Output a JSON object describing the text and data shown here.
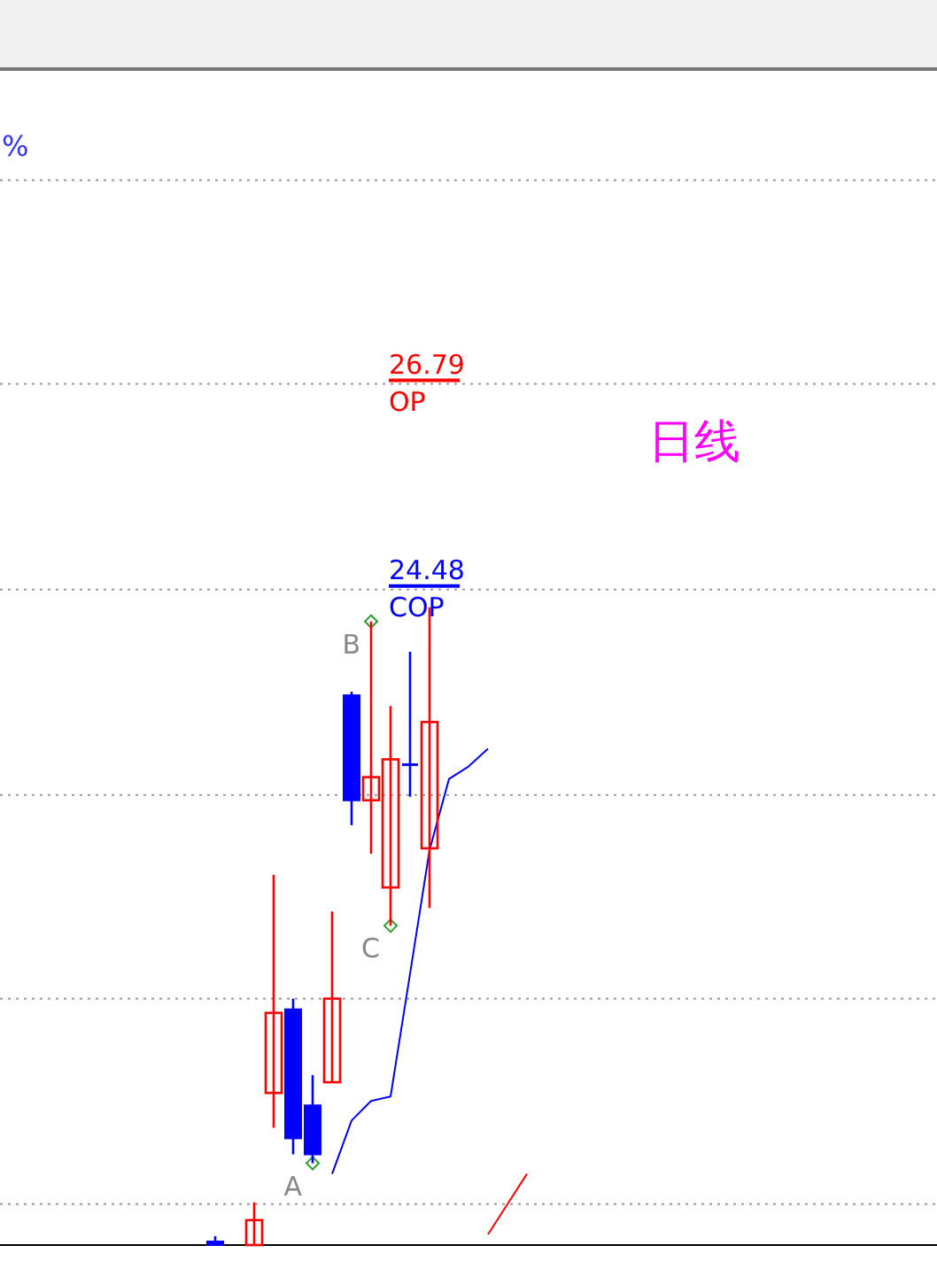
{
  "chart_data": {
    "type": "candlestick",
    "categories": [
      null,
      null,
      null,
      null,
      null,
      null,
      null,
      null,
      null,
      null,
      null,
      null,
      null,
      null,
      null,
      null,
      null,
      null,
      null,
      null,
      null,
      null,
      null,
      null,
      null,
      null,
      null,
      null,
      null,
      null,
      null,
      null,
      null,
      null,
      null,
      null,
      null,
      null,
      null,
      null,
      null,
      null,
      null,
      null,
      null,
      null,
      null
    ],
    "ohlc": [
      null,
      null,
      null,
      null,
      null,
      null,
      null,
      null,
      null,
      null,
      [
        17.15,
        17.21,
        17.11,
        17.11
      ],
      null,
      [
        17.11,
        17.59,
        17.11,
        17.39
      ],
      [
        18.82,
        21.27,
        18.43,
        19.72
      ],
      [
        19.76,
        19.88,
        18.13,
        18.31
      ],
      [
        18.68,
        19.02,
        18.03,
        18.13
      ],
      [
        18.94,
        20.86,
        18.94,
        19.88
      ],
      [
        23.29,
        23.33,
        21.83,
        22.11
      ],
      [
        22.11,
        24.12,
        21.51,
        22.37
      ],
      [
        21.13,
        23.17,
        20.7,
        22.57
      ],
      [
        22.51,
        23.78,
        22.15,
        22.51
      ],
      [
        21.57,
        24.28,
        20.9,
        22.99
      ],
      null,
      null,
      null,
      null,
      null,
      null,
      null,
      null,
      null,
      null,
      null,
      null,
      null,
      null,
      null,
      null,
      null,
      null,
      null,
      null,
      null,
      null,
      null,
      null,
      null
    ],
    "colors": [
      null,
      null,
      null,
      null,
      null,
      null,
      null,
      null,
      null,
      null,
      "#0000ff",
      null,
      "#ff0000",
      "#ff0000",
      "#0000ff",
      "#0000ff",
      "#ff0000",
      "#0000ff",
      "#ff0000",
      "#ff0000",
      "#0000ff",
      "#ff0000",
      null,
      null,
      null,
      null,
      null,
      null,
      null,
      null,
      null,
      null,
      null,
      null,
      null,
      null,
      null,
      null,
      null,
      null,
      null,
      null,
      null,
      null,
      null,
      null,
      null
    ],
    "series": [
      {
        "type": "line",
        "color": "#0000ff",
        "values": [
          null,
          null,
          null,
          null,
          null,
          null,
          null,
          null,
          null,
          null,
          null,
          null,
          null,
          null,
          null,
          null,
          17.91,
          18.51,
          18.73,
          18.78,
          20.16,
          21.55,
          22.35,
          22.49,
          22.69,
          null,
          null,
          null,
          null,
          null,
          null,
          null,
          null,
          null,
          null,
          null,
          null,
          null,
          null,
          null,
          null,
          null,
          null,
          null,
          null,
          null,
          null
        ]
      },
      {
        "type": "line",
        "color": "#ff0000",
        "values": [
          null,
          null,
          null,
          null,
          null,
          null,
          null,
          null,
          null,
          null,
          null,
          null,
          null,
          null,
          null,
          null,
          null,
          null,
          null,
          null,
          null,
          null,
          null,
          null,
          17.23,
          17.57,
          17.91,
          null,
          null,
          null,
          null,
          null,
          null,
          null,
          null,
          null,
          null,
          null,
          null,
          null,
          null,
          null,
          null,
          null,
          null,
          null,
          null
        ]
      },
      {
        "type": "scatter",
        "color": "#2ca02c",
        "marker": "diamond",
        "values": [
          null,
          null,
          null,
          null,
          null,
          null,
          null,
          null,
          null,
          null,
          null,
          null,
          null,
          null,
          null,
          18.03,
          null,
          null,
          24.12,
          20.7,
          null,
          null,
          null,
          null,
          null,
          null,
          null,
          null,
          null,
          null,
          null,
          null,
          null,
          null,
          null,
          null,
          null,
          null,
          null,
          null,
          null,
          null,
          null,
          null,
          null,
          null,
          null
        ],
        "value_labels": [
          null,
          null,
          null,
          null,
          null,
          null,
          null,
          null,
          null,
          null,
          null,
          null,
          null,
          null,
          null,
          "A",
          null,
          null,
          "B",
          "C",
          null,
          null,
          null,
          null,
          null,
          null,
          null,
          null,
          null,
          null,
          null,
          null,
          null,
          null,
          null,
          null,
          null,
          null,
          null,
          null,
          null,
          null,
          null,
          null,
          null,
          null,
          null
        ]
      }
    ],
    "ylim": [
      17.11,
      30.31
    ],
    "yticks": [
      {
        "value": 29.08,
        "label": null
      },
      {
        "value": 26.79,
        "label": null
      },
      {
        "value": 24.48,
        "label": null
      },
      {
        "value": 22.17,
        "label": null
      },
      {
        "value": 19.88,
        "label": null
      },
      {
        "value": 17.57,
        "label": null
      }
    ],
    "grid": "y",
    "ref_lines": [
      {
        "axis": "y",
        "value": 26.79,
        "label": "26.79",
        "color": "#ff0000"
      },
      {
        "axis": "y",
        "value": 24.48,
        "label": "24.48",
        "color": "#0000ff"
      }
    ],
    "annotations": [
      "%",
      "日线",
      {
        "text": "OP",
        "y": 26.79
      },
      {
        "text": "COP",
        "y": 24.48
      }
    ]
  }
}
